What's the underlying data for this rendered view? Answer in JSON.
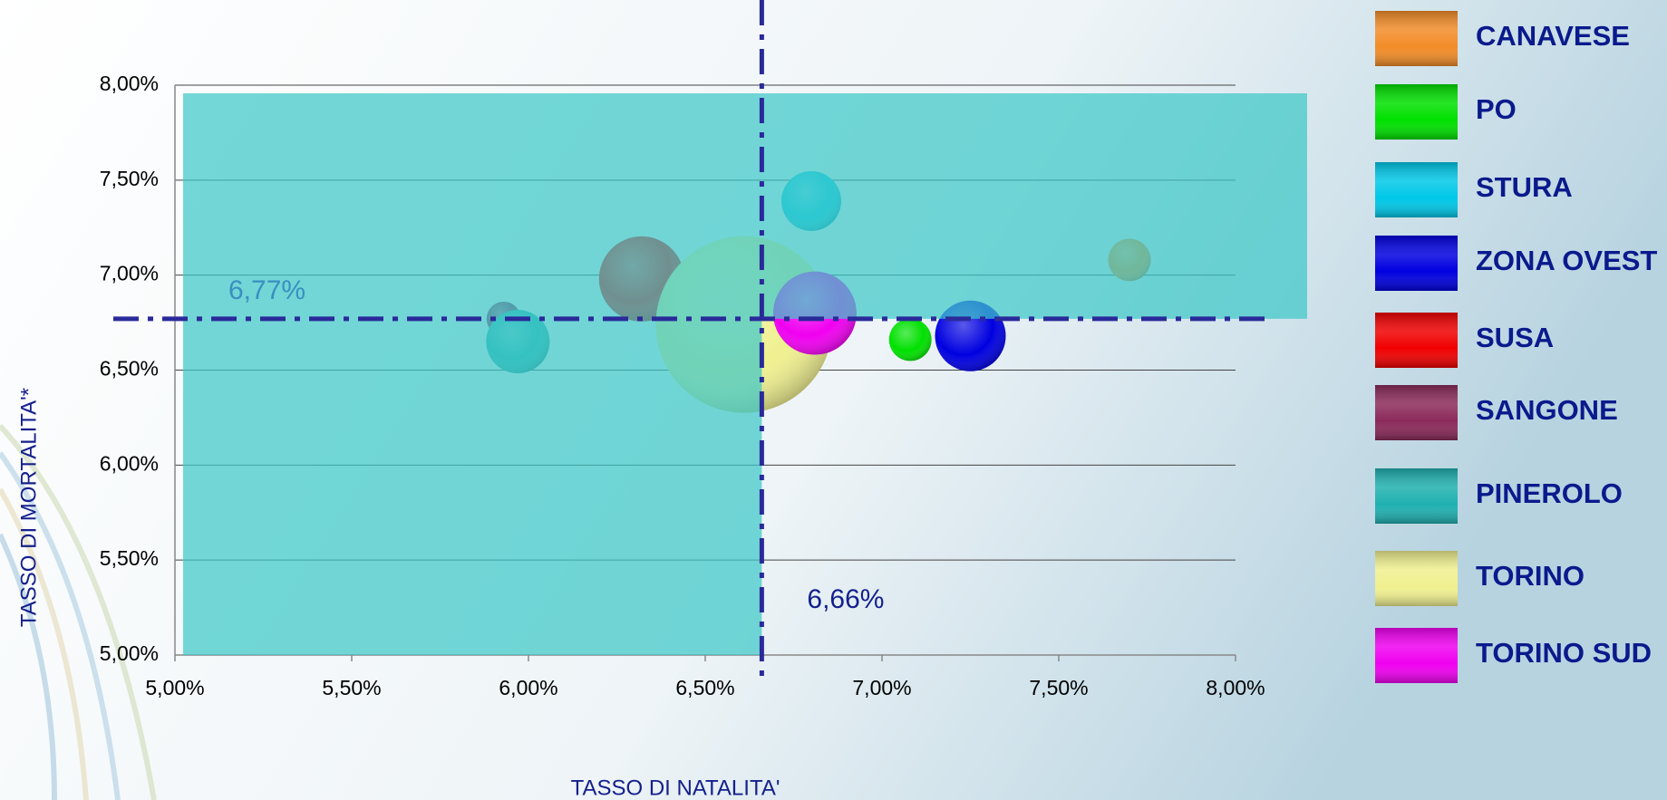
{
  "chart_data": {
    "type": "bubble",
    "x_label": "TASSO DI NATALITA'",
    "y_label": "TASSO DI MORTALITA'*",
    "xlim": [
      5,
      8
    ],
    "ylim": [
      5,
      8
    ],
    "xticks": [
      {
        "value": 5,
        "label": "5,00%"
      },
      {
        "value": 5.5,
        "label": "5,50%"
      },
      {
        "value": 6,
        "label": "6,00%"
      },
      {
        "value": 6.5,
        "label": "6,50%"
      },
      {
        "value": 7,
        "label": "7,00%"
      },
      {
        "value": 7.5,
        "label": "7,50%"
      },
      {
        "value": 8,
        "label": "8,00%"
      }
    ],
    "yticks": [
      {
        "value": 5,
        "label": "5,00%"
      },
      {
        "value": 5.5,
        "label": "5,50%"
      },
      {
        "value": 6,
        "label": "6,00%"
      },
      {
        "value": 6.5,
        "label": "6,50%"
      },
      {
        "value": 7,
        "label": "7,00%"
      },
      {
        "value": 7.5,
        "label": "7,50%"
      },
      {
        "value": 8,
        "label": "8,00%"
      }
    ],
    "grid": true,
    "legend": "right",
    "reference_lines": {
      "x": {
        "value": 6.66,
        "label": "6,66%"
      },
      "y": {
        "value": 6.77,
        "label": "6,77%"
      }
    },
    "series": [
      {
        "name": "CANAVESE",
        "color": "#f28c28",
        "x": [
          7.7
        ],
        "values": [
          7.08
        ],
        "sizes": [
          52
        ]
      },
      {
        "name": "PO",
        "color": "#00e000",
        "x": [
          7.08
        ],
        "values": [
          6.66
        ],
        "sizes": [
          52
        ]
      },
      {
        "name": "STURA",
        "color": "#00c8e8",
        "x": [
          6.8
        ],
        "values": [
          7.39
        ],
        "sizes": [
          103
        ]
      },
      {
        "name": "ZONA OVEST",
        "color": "#0000e0",
        "x": [
          7.25
        ],
        "values": [
          6.68
        ],
        "sizes": [
          144
        ]
      },
      {
        "name": "SUSA",
        "color": "#f00000",
        "x": [
          6.32
        ],
        "values": [
          6.98
        ],
        "sizes": [
          209
        ]
      },
      {
        "name": "SANGONE",
        "color": "#8b2a5a",
        "x": [
          5.93
        ],
        "values": [
          6.77
        ],
        "sizes": [
          34
        ]
      },
      {
        "name": "PINEROLO",
        "color": "#20b0b0",
        "x": [
          5.97
        ],
        "values": [
          6.65
        ],
        "sizes": [
          116
        ]
      },
      {
        "name": "TORINO",
        "color": "#f0f090",
        "x": [
          6.61
        ],
        "values": [
          6.74
        ],
        "sizes": [
          900
        ]
      },
      {
        "name": "TORINO SUD",
        "color": "#f000f0",
        "x": [
          6.81
        ],
        "values": [
          6.8
        ],
        "sizes": [
          200
        ]
      }
    ]
  }
}
